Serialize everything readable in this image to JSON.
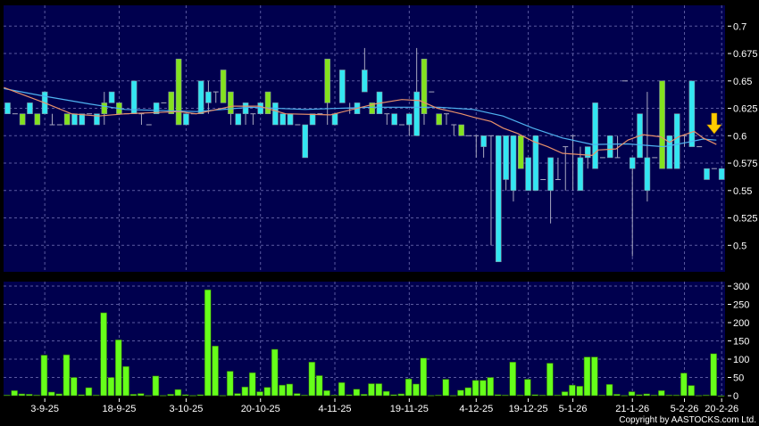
{
  "copyright": "Copyright by AASTOCKS.com Ltd.",
  "colors": {
    "background": "#000000",
    "plot_bg": "#00004e",
    "grid": "#5a5aa0",
    "down_candle": "#33e6f2",
    "up_candle": "#84e21e",
    "doji": "#a8a8c0",
    "volume": "#66ff1a",
    "ma_short": "#e8906a",
    "ma_long": "#4fb3f0",
    "marker": "#ffcc00"
  },
  "chart_data": [
    {
      "type": "candlestick",
      "ylim": [
        0.4775,
        0.717
      ],
      "grid": true,
      "y_ticks": [
        "0.7",
        "0.675",
        "0.65",
        "0.625",
        "0.6",
        "0.575",
        "0.55",
        "0.525",
        "0.5"
      ],
      "x_ticks": [
        {
          "label": "3-9-25",
          "at": 5
        },
        {
          "label": "18-9-25",
          "at": 15
        },
        {
          "label": "3-10-25",
          "at": 24
        },
        {
          "label": "20-10-25",
          "at": 34
        },
        {
          "label": "4-11-25",
          "at": 44
        },
        {
          "label": "19-11-25",
          "at": 54
        },
        {
          "label": "4-12-25",
          "at": 63
        },
        {
          "label": "19-12-25",
          "at": 70
        },
        {
          "label": "5-1-26",
          "at": 76
        },
        {
          "label": "21-1-26",
          "at": 84
        },
        {
          "label": "5-2-26",
          "at": 91
        },
        {
          "label": "20-2-26",
          "at": 96
        }
      ],
      "ohlc_fields": [
        "open",
        "high",
        "low",
        "close"
      ],
      "candles": [
        [
          0.63,
          0.63,
          0.62,
          0.62
        ],
        [
          0.62,
          0.62,
          0.62,
          0.62
        ],
        [
          0.61,
          0.62,
          0.61,
          0.62
        ],
        [
          0.63,
          0.63,
          0.62,
          0.62
        ],
        [
          0.61,
          0.62,
          0.61,
          0.62
        ],
        [
          0.64,
          0.64,
          0.62,
          0.62
        ],
        [
          0.61,
          0.62,
          0.61,
          0.61
        ],
        [
          0.61,
          0.61,
          0.61,
          0.61
        ],
        [
          0.61,
          0.62,
          0.61,
          0.62
        ],
        [
          0.62,
          0.62,
          0.61,
          0.61
        ],
        [
          0.62,
          0.62,
          0.61,
          0.61
        ],
        [
          0.62,
          0.62,
          0.62,
          0.62
        ],
        [
          0.62,
          0.62,
          0.61,
          0.61
        ],
        [
          0.62,
          0.64,
          0.61,
          0.63
        ],
        [
          0.64,
          0.64,
          0.63,
          0.63
        ],
        [
          0.62,
          0.63,
          0.62,
          0.63
        ],
        [
          0.62,
          0.62,
          0.62,
          0.62
        ],
        [
          0.65,
          0.65,
          0.62,
          0.62
        ],
        [
          0.62,
          0.62,
          0.61,
          0.62
        ],
        [
          0.61,
          0.61,
          0.61,
          0.61
        ],
        [
          0.63,
          0.63,
          0.62,
          0.62
        ],
        [
          0.63,
          0.63,
          0.63,
          0.63
        ],
        [
          0.62,
          0.64,
          0.62,
          0.64
        ],
        [
          0.61,
          0.67,
          0.61,
          0.67
        ],
        [
          0.62,
          0.62,
          0.61,
          0.61
        ],
        [
          0.62,
          0.62,
          0.62,
          0.62
        ],
        [
          0.65,
          0.65,
          0.62,
          0.62
        ],
        [
          0.64,
          0.65,
          0.62,
          0.63
        ],
        [
          0.64,
          0.64,
          0.63,
          0.64
        ],
        [
          0.63,
          0.66,
          0.63,
          0.66
        ],
        [
          0.62,
          0.64,
          0.61,
          0.64
        ],
        [
          0.62,
          0.62,
          0.61,
          0.61
        ],
        [
          0.63,
          0.63,
          0.61,
          0.62
        ],
        [
          0.62,
          0.62,
          0.61,
          0.62
        ],
        [
          0.63,
          0.63,
          0.62,
          0.62
        ],
        [
          0.62,
          0.64,
          0.62,
          0.64
        ],
        [
          0.63,
          0.63,
          0.61,
          0.61
        ],
        [
          0.62,
          0.62,
          0.61,
          0.61
        ],
        [
          0.62,
          0.62,
          0.61,
          0.61
        ],
        [
          0.61,
          0.61,
          0.61,
          0.61
        ],
        [
          0.61,
          0.61,
          0.58,
          0.58
        ],
        [
          0.62,
          0.62,
          0.61,
          0.61
        ],
        [
          0.62,
          0.62,
          0.62,
          0.62
        ],
        [
          0.63,
          0.67,
          0.61,
          0.67
        ],
        [
          0.62,
          0.62,
          0.61,
          0.61
        ],
        [
          0.66,
          0.66,
          0.63,
          0.63
        ],
        [
          0.625,
          0.63,
          0.62,
          0.625
        ],
        [
          0.63,
          0.63,
          0.62,
          0.62
        ],
        [
          0.66,
          0.68,
          0.64,
          0.64
        ],
        [
          0.62,
          0.63,
          0.62,
          0.63
        ],
        [
          0.64,
          0.64,
          0.62,
          0.62
        ],
        [
          0.62,
          0.62,
          0.61,
          0.62
        ],
        [
          0.62,
          0.62,
          0.61,
          0.61
        ],
        [
          0.61,
          0.61,
          0.61,
          0.61
        ],
        [
          0.62,
          0.62,
          0.6,
          0.61
        ],
        [
          0.64,
          0.68,
          0.6,
          0.6
        ],
        [
          0.62,
          0.67,
          0.61,
          0.67
        ],
        [
          0.64,
          0.64,
          0.64,
          0.64
        ],
        [
          0.61,
          0.62,
          0.61,
          0.62
        ],
        [
          0.62,
          0.62,
          0.61,
          0.62
        ],
        [
          0.61,
          0.61,
          0.6,
          0.61
        ],
        [
          0.6,
          0.61,
          0.6,
          0.61
        ],
        [
          0.6,
          0.6,
          0.6,
          0.6
        ],
        [
          0.6,
          0.6,
          0.58,
          0.6
        ],
        [
          0.6,
          0.6,
          0.58,
          0.59
        ],
        [
          0.6,
          0.6,
          0.5,
          0.6
        ],
        [
          0.6,
          0.6,
          0.485,
          0.485
        ],
        [
          0.6,
          0.6,
          0.55,
          0.56
        ],
        [
          0.6,
          0.6,
          0.54,
          0.55
        ],
        [
          0.57,
          0.6,
          0.57,
          0.6
        ],
        [
          0.58,
          0.58,
          0.55,
          0.55
        ],
        [
          0.6,
          0.6,
          0.55,
          0.55
        ],
        [
          0.56,
          0.56,
          0.56,
          0.56
        ],
        [
          0.58,
          0.58,
          0.52,
          0.55
        ],
        [
          0.56,
          0.58,
          0.56,
          0.56
        ],
        [
          0.59,
          0.59,
          0.55,
          0.59
        ],
        [
          0.6,
          0.6,
          0.55,
          0.6
        ],
        [
          0.58,
          0.59,
          0.55,
          0.55
        ],
        [
          0.59,
          0.59,
          0.57,
          0.58
        ],
        [
          0.63,
          0.63,
          0.57,
          0.57
        ],
        [
          0.58,
          0.58,
          0.58,
          0.58
        ],
        [
          0.6,
          0.6,
          0.58,
          0.58
        ],
        [
          0.58,
          0.6,
          0.58,
          0.58
        ],
        [
          0.65,
          0.65,
          0.65,
          0.65
        ],
        [
          0.58,
          0.58,
          0.49,
          0.57
        ],
        [
          0.62,
          0.62,
          0.58,
          0.58
        ],
        [
          0.58,
          0.64,
          0.54,
          0.55
        ],
        [
          0.58,
          0.58,
          0.58,
          0.58
        ],
        [
          0.57,
          0.65,
          0.57,
          0.65
        ],
        [
          0.6,
          0.6,
          0.57,
          0.57
        ],
        [
          0.62,
          0.62,
          0.57,
          0.57
        ],
        [
          0.6,
          0.6,
          0.59,
          0.6
        ],
        [
          0.65,
          0.65,
          0.59,
          0.59
        ],
        [
          0.59,
          0.59,
          0.59,
          0.59
        ],
        [
          0.57,
          0.57,
          0.56,
          0.56
        ],
        [
          0.57,
          0.57,
          0.57,
          0.57
        ],
        [
          0.57,
          0.57,
          0.56,
          0.56
        ]
      ],
      "ma_short": [
        [
          -0.5,
          0.644
        ],
        [
          5,
          0.63
        ],
        [
          8.6,
          0.62
        ],
        [
          12.2,
          0.618
        ],
        [
          15.8,
          0.62
        ],
        [
          23,
          0.622
        ],
        [
          25.4,
          0.62
        ],
        [
          30.2,
          0.627
        ],
        [
          33.8,
          0.627
        ],
        [
          37.4,
          0.62
        ],
        [
          43.4,
          0.619
        ],
        [
          49.4,
          0.629
        ],
        [
          53,
          0.633
        ],
        [
          55.4,
          0.632
        ],
        [
          57.8,
          0.625
        ],
        [
          61,
          0.62
        ],
        [
          62.6,
          0.617
        ],
        [
          65,
          0.613
        ],
        [
          66.6,
          0.607
        ],
        [
          68.6,
          0.602
        ],
        [
          70.6,
          0.595
        ],
        [
          72.6,
          0.59
        ],
        [
          74.6,
          0.584
        ],
        [
          78.6,
          0.582
        ],
        [
          79.4,
          0.587
        ],
        [
          81.8,
          0.588
        ],
        [
          83.4,
          0.596
        ],
        [
          85.4,
          0.601
        ],
        [
          87.8,
          0.599
        ],
        [
          89,
          0.594
        ],
        [
          90.2,
          0.599
        ],
        [
          92.3,
          0.604
        ],
        [
          93.5,
          0.598
        ],
        [
          95.3,
          0.592
        ]
      ],
      "ma_long": [
        [
          -0.5,
          0.643
        ],
        [
          5,
          0.636
        ],
        [
          11,
          0.629
        ],
        [
          15.8,
          0.624
        ],
        [
          25.4,
          0.622
        ],
        [
          32.6,
          0.626
        ],
        [
          40,
          0.624
        ],
        [
          49,
          0.626
        ],
        [
          58,
          0.626
        ],
        [
          62.6,
          0.624
        ],
        [
          66.6,
          0.618
        ],
        [
          70.6,
          0.607
        ],
        [
          74.6,
          0.598
        ],
        [
          78.6,
          0.592
        ],
        [
          83.4,
          0.5925
        ],
        [
          88.2,
          0.59
        ],
        [
          91.4,
          0.594
        ],
        [
          93.5,
          0.597
        ],
        [
          95.3,
          0.596
        ]
      ],
      "marker": {
        "type": "down-arrow",
        "at": 95
      }
    },
    {
      "type": "bar",
      "ylim": [
        0,
        307
      ],
      "grid": true,
      "y_ticks": [
        "300",
        "250",
        "200",
        "150",
        "100",
        "50",
        "0"
      ],
      "values": [
        2,
        14,
        5,
        4,
        2,
        111,
        10,
        5,
        112,
        50,
        3,
        22,
        2,
        227,
        50,
        153,
        80,
        4,
        6,
        1,
        54,
        1,
        4,
        17,
        3,
        1,
        3,
        290,
        136,
        1,
        67,
        6,
        24,
        63,
        11,
        23,
        127,
        29,
        32,
        6,
        2,
        92,
        55,
        14,
        2,
        36,
        3,
        18,
        4,
        33,
        33,
        12,
        3,
        5,
        46,
        32,
        103,
        1,
        2,
        45,
        1,
        15,
        22,
        42,
        42,
        50,
        3,
        2,
        92,
        2,
        45,
        3,
        2,
        89,
        2,
        11,
        29,
        26,
        106,
        106,
        2,
        31,
        4,
        1,
        11,
        3,
        5,
        2,
        14,
        2,
        2,
        62,
        28,
        1,
        2,
        115,
        0
      ]
    }
  ]
}
